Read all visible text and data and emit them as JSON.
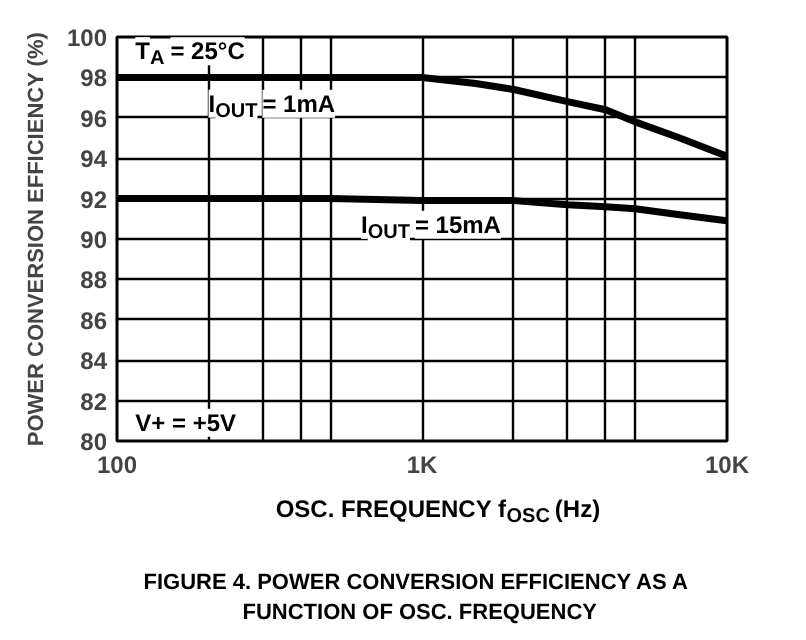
{
  "chart_data": {
    "type": "line",
    "log": "x",
    "title": "FIGURE 4.  POWER CONVERSION EFFICIENCY AS A\nFUNCTION OF OSC. FREQUENCY",
    "xlabel": "OSC. FREQUENCY f$_{OSC}$ (Hz)",
    "ylabel": "POWER CONVERSION EFFICIENCY (%)",
    "annotations": [
      "T$_{A}$ = 25°C",
      "V+ = +5V"
    ],
    "x": [
      100,
      200,
      500,
      1000,
      1500,
      2000,
      3000,
      4000,
      5000,
      7000,
      10000
    ],
    "series": [
      {
        "name": "I$_{OUT}$ = 1mA",
        "color": "#000000",
        "values": [
          98.0,
          98.0,
          98.0,
          98.0,
          97.7,
          97.4,
          96.8,
          96.4,
          95.8,
          95.0,
          94.1
        ]
      },
      {
        "name": "I$_{OUT}$ = 15mA",
        "color": "#000000",
        "values": [
          92.0,
          92.0,
          92.0,
          91.9,
          91.9,
          91.9,
          91.7,
          91.6,
          91.5,
          91.2,
          90.9
        ]
      }
    ],
    "xlim": [
      100,
      10000
    ],
    "ylim": [
      80,
      100
    ],
    "xticks": [
      100,
      {
        "value": 200,
        "label": null
      },
      {
        "value": 300,
        "label": null
      },
      {
        "value": 400,
        "label": null
      },
      {
        "value": 500,
        "label": null
      },
      {
        "value": 1000,
        "label": "1K"
      },
      {
        "value": 2000,
        "label": null
      },
      {
        "value": 3000,
        "label": null
      },
      {
        "value": 4000,
        "label": null
      },
      {
        "value": 5000,
        "label": null
      },
      {
        "value": 10000,
        "label": "10K"
      }
    ],
    "yticks": [
      80,
      82,
      84,
      86,
      88,
      90,
      92,
      94,
      96,
      98,
      100
    ],
    "grid": true,
    "line_style": "solid",
    "marker": "none"
  }
}
